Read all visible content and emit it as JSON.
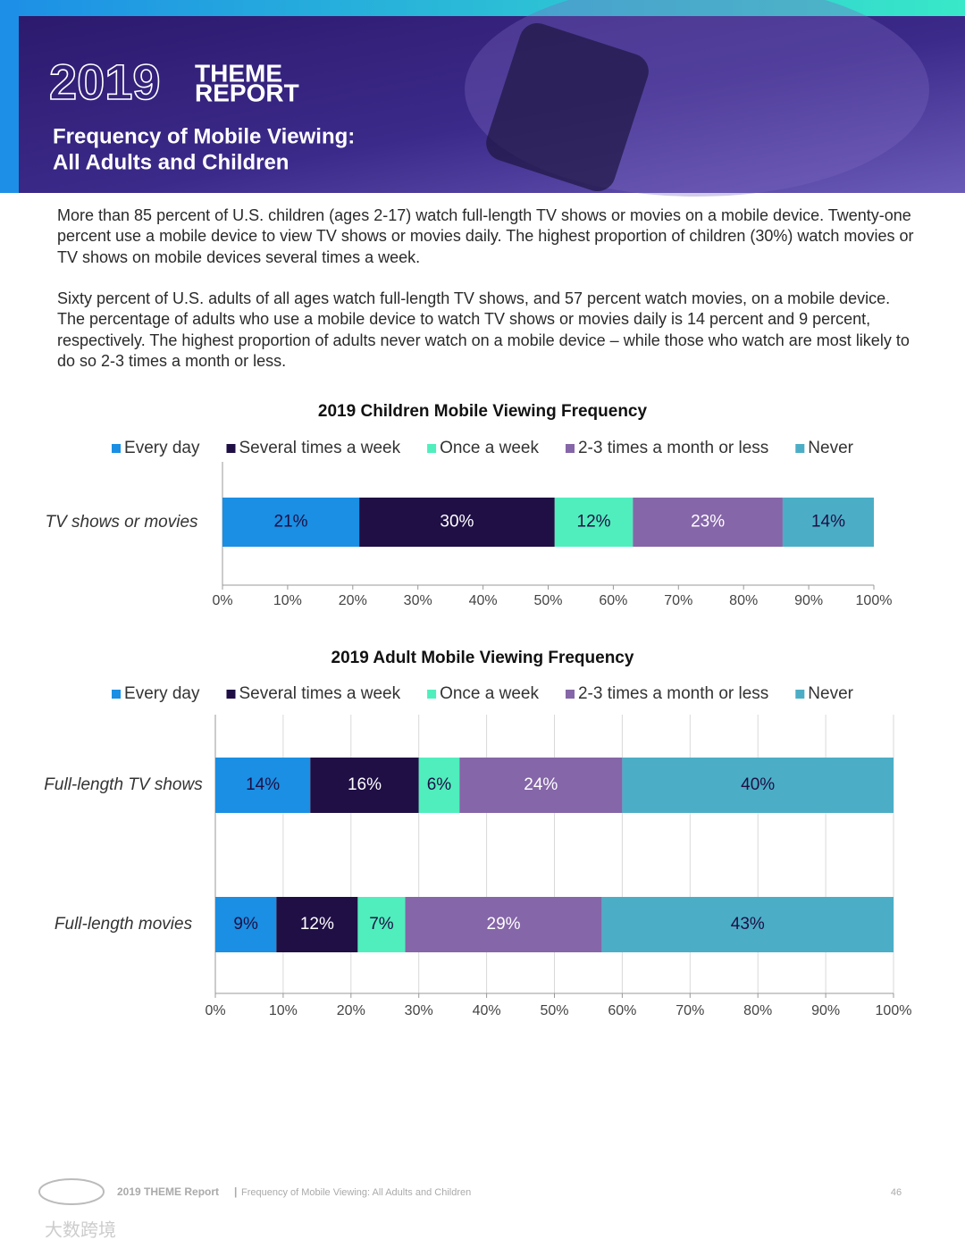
{
  "header": {
    "logo_year": "2019",
    "logo_words": [
      "THEME",
      "REPORT"
    ],
    "title_lines": [
      "Frequency of Mobile Viewing:",
      "All Adults and Children"
    ]
  },
  "body": {
    "paragraphs": [
      "More than 85 percent of U.S. children (ages 2-17) watch full-length TV shows or movies on a mobile device. Twenty-one percent use a mobile device to view TV shows or movies daily. The highest proportion of children (30%) watch movies or TV shows on mobile devices several times a week.",
      "Sixty percent of U.S. adults of all ages watch full-length TV shows, and 57 percent watch movies, on a mobile device. The percentage of adults who use a mobile device to watch TV shows or movies daily is 14 percent and 9 percent, respectively. The highest proportion of adults never watch on a mobile device – while those who watch are most likely to do so 2-3 times a month or less."
    ]
  },
  "chart_data": [
    {
      "type": "bar",
      "orientation": "horizontal",
      "stacked": true,
      "title": "2019 Children Mobile Viewing Frequency",
      "categories": [
        "TV shows or movies"
      ],
      "series": [
        {
          "name": "Every day",
          "color": "#1a8fe3",
          "values": [
            21
          ],
          "value_labels": [
            "21%"
          ]
        },
        {
          "name": "Several times a week",
          "color": "#1f0f45",
          "values": [
            30
          ],
          "value_labels": [
            "30%"
          ]
        },
        {
          "name": "Once a week",
          "color": "#50eebd",
          "values": [
            12
          ],
          "value_labels": [
            "12%"
          ]
        },
        {
          "name": "2-3 times a month or less",
          "color": "#8566a8",
          "values": [
            23
          ],
          "value_labels": [
            "23%"
          ]
        },
        {
          "name": "Never",
          "color": "#4baec6",
          "values": [
            14
          ],
          "value_labels": [
            "14%"
          ]
        }
      ],
      "xlim": [
        0,
        100
      ],
      "xticks": [
        {
          "value": 0,
          "label": "0%"
        },
        {
          "value": 10,
          "label": "10%"
        },
        {
          "value": 20,
          "label": "20%"
        },
        {
          "value": 30,
          "label": "30%"
        },
        {
          "value": 40,
          "label": "40%"
        },
        {
          "value": 50,
          "label": "50%"
        },
        {
          "value": 60,
          "label": "60%"
        },
        {
          "value": 70,
          "label": "70%"
        },
        {
          "value": 80,
          "label": "80%"
        },
        {
          "value": 90,
          "label": "90%"
        },
        {
          "value": 100,
          "label": "100%"
        }
      ],
      "grid": false,
      "legend": "top"
    },
    {
      "type": "bar",
      "orientation": "horizontal",
      "stacked": true,
      "title": "2019 Adult Mobile Viewing Frequency",
      "categories": [
        "Full-length TV shows",
        "Full-length movies"
      ],
      "series": [
        {
          "name": "Every day",
          "color": "#1a8fe3",
          "values": [
            14,
            9
          ],
          "value_labels": [
            "14%",
            "9%"
          ]
        },
        {
          "name": "Several times a week",
          "color": "#1f0f45",
          "values": [
            16,
            12
          ],
          "value_labels": [
            "16%",
            "12%"
          ]
        },
        {
          "name": "Once a week",
          "color": "#50eebd",
          "values": [
            6,
            7
          ],
          "value_labels": [
            "6%",
            "7%"
          ]
        },
        {
          "name": "2-3 times a month or less",
          "color": "#8566a8",
          "values": [
            24,
            29
          ],
          "value_labels": [
            "24%",
            "29%"
          ]
        },
        {
          "name": "Never",
          "color": "#4baec6",
          "values": [
            40,
            43
          ],
          "value_labels": [
            "40%",
            "43%"
          ]
        }
      ],
      "xlim": [
        0,
        100
      ],
      "xticks": [
        {
          "value": 0,
          "label": "0%"
        },
        {
          "value": 10,
          "label": "10%"
        },
        {
          "value": 20,
          "label": "20%"
        },
        {
          "value": 30,
          "label": "30%"
        },
        {
          "value": 40,
          "label": "40%"
        },
        {
          "value": 50,
          "label": "50%"
        },
        {
          "value": 60,
          "label": "60%"
        },
        {
          "value": 70,
          "label": "70%"
        },
        {
          "value": 80,
          "label": "80%"
        },
        {
          "value": 90,
          "label": "90%"
        },
        {
          "value": 100,
          "label": "100%"
        }
      ],
      "grid": true,
      "legend": "top"
    }
  ],
  "footer": {
    "brand": "2019 THEME Report",
    "separator": "|",
    "section": "Frequency of Mobile Viewing: All Adults and Children",
    "page": 46
  },
  "watermark": "大数跨境"
}
